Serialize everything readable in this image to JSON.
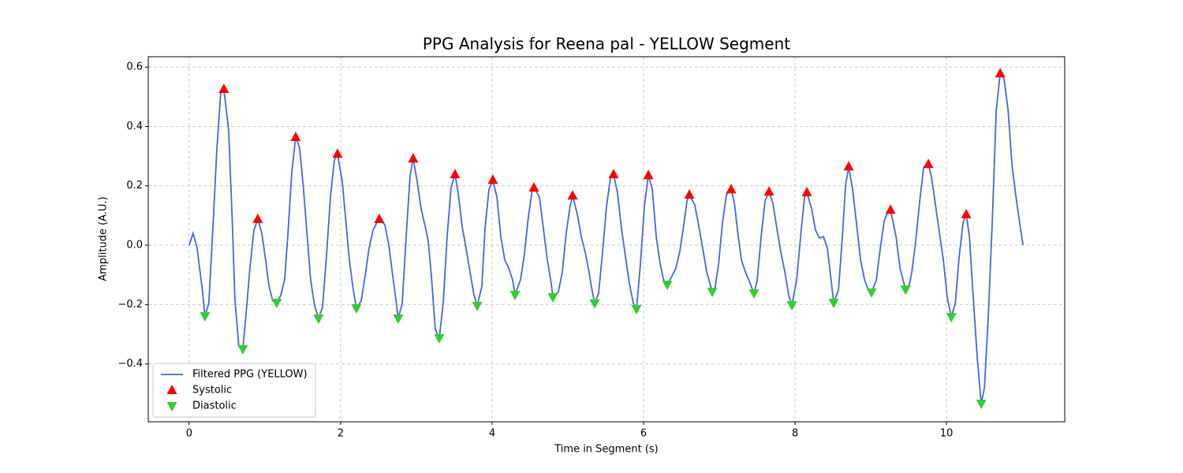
{
  "chart_data": {
    "type": "line",
    "title": "PPG Analysis for Reena pal - YELLOW Segment",
    "xlabel": "Time in Segment (s)",
    "ylabel": "Amplitude (A.U.)",
    "xlim": [
      -0.54,
      11.56
    ],
    "ylim": [
      -0.595,
      0.635
    ],
    "xticks": [
      0,
      2,
      4,
      6,
      8,
      10
    ],
    "yticks": [
      {
        "value": -0.4,
        "label": "−0.4"
      },
      {
        "value": -0.2,
        "label": "−0.2"
      },
      {
        "value": 0,
        "label": "0.0"
      },
      0.2,
      0.4,
      0.6
    ],
    "grid": true,
    "legend": "lower left",
    "series": [
      {
        "name": "Filtered PPG (YELLOW)",
        "color": "#4169e1",
        "marker": "line",
        "x": [
          0,
          0.052,
          0.104,
          0.177,
          0.208,
          0.26,
          0.313,
          0.365,
          0.417,
          0.458,
          0.521,
          0.573,
          0.604,
          0.656,
          0.708,
          0.75,
          0.802,
          0.854,
          0.906,
          0.958,
          1.01,
          1.052,
          1.104,
          1.156,
          1.208,
          1.26,
          1.302,
          1.354,
          1.406,
          1.458,
          1.51,
          1.563,
          1.604,
          1.656,
          1.708,
          1.76,
          1.813,
          1.865,
          1.917,
          1.958,
          2.021,
          2.073,
          2.115,
          2.167,
          2.208,
          2.271,
          2.323,
          2.375,
          2.427,
          2.479,
          2.51,
          2.583,
          2.635,
          2.688,
          2.729,
          2.76,
          2.813,
          2.865,
          2.917,
          2.958,
          3.01,
          3.063,
          3.104,
          3.156,
          3.198,
          3.25,
          3.302,
          3.354,
          3.406,
          3.458,
          3.51,
          3.552,
          3.604,
          3.656,
          3.708,
          3.76,
          3.802,
          3.865,
          3.906,
          3.958,
          4.01,
          4.063,
          4.115,
          4.167,
          4.219,
          4.271,
          4.302,
          4.375,
          4.427,
          4.479,
          4.531,
          4.552,
          4.625,
          4.677,
          4.729,
          4.781,
          4.802,
          4.875,
          4.927,
          4.979,
          5.031,
          5.063,
          5.125,
          5.177,
          5.229,
          5.271,
          5.313,
          5.354,
          5.406,
          5.458,
          5.51,
          5.563,
          5.604,
          5.656,
          5.708,
          5.76,
          5.813,
          5.865,
          5.906,
          5.958,
          6.01,
          6.063,
          6.115,
          6.167,
          6.219,
          6.271,
          6.313,
          6.375,
          6.427,
          6.479,
          6.531,
          6.573,
          6.604,
          6.677,
          6.729,
          6.781,
          6.833,
          6.906,
          6.938,
          6.99,
          7.042,
          7.094,
          7.156,
          7.198,
          7.25,
          7.292,
          7.344,
          7.396,
          7.458,
          7.5,
          7.552,
          7.604,
          7.656,
          7.708,
          7.76,
          7.813,
          7.865,
          7.917,
          7.958,
          8.021,
          8.073,
          8.125,
          8.156,
          8.219,
          8.271,
          8.323,
          8.375,
          8.427,
          8.479,
          8.51,
          8.573,
          8.625,
          8.667,
          8.708,
          8.76,
          8.813,
          8.865,
          8.917,
          8.969,
          9.01,
          9.073,
          9.125,
          9.177,
          9.229,
          9.26,
          9.333,
          9.385,
          9.458,
          9.5,
          9.542,
          9.594,
          9.646,
          9.698,
          9.76,
          9.802,
          9.854,
          9.906,
          9.958,
          10.01,
          10.063,
          10.115,
          10.167,
          10.219,
          10.26,
          10.302,
          10.354,
          10.406,
          10.458,
          10.5,
          10.552,
          10.604,
          10.656,
          10.708,
          10.76,
          10.813,
          10.865,
          10.917,
          10.969,
          11.01
        ],
        "values": [
          0,
          0.04,
          -0.008,
          -0.157,
          -0.239,
          -0.194,
          0.056,
          0.321,
          0.515,
          0.526,
          0.388,
          0.056,
          -0.183,
          -0.342,
          -0.35,
          -0.236,
          -0.077,
          0.05,
          0.088,
          0.042,
          -0.05,
          -0.135,
          -0.188,
          -0.194,
          -0.17,
          -0.117,
          0.029,
          0.242,
          0.364,
          0.329,
          0.188,
          0.016,
          -0.117,
          -0.204,
          -0.247,
          -0.21,
          -0.037,
          0.162,
          0.287,
          0.308,
          0.215,
          0.069,
          -0.05,
          -0.151,
          -0.212,
          -0.188,
          -0.104,
          -0.011,
          0.05,
          0.077,
          0.088,
          0.069,
          0.003,
          -0.104,
          -0.183,
          -0.247,
          -0.196,
          0.029,
          0.236,
          0.292,
          0.215,
          0.122,
          0.077,
          0.016,
          -0.104,
          -0.284,
          -0.313,
          -0.196,
          0.029,
          0.194,
          0.239,
          0.175,
          0.064,
          -0.011,
          -0.09,
          -0.167,
          -0.204,
          -0.138,
          0.056,
          0.188,
          0.22,
          0.162,
          0.029,
          -0.05,
          -0.077,
          -0.117,
          -0.167,
          -0.117,
          -0.029,
          0.096,
          0.188,
          0.194,
          0.162,
          0.056,
          -0.05,
          -0.13,
          -0.175,
          -0.157,
          -0.09,
          0.042,
          0.135,
          0.167,
          0.104,
          0.029,
          -0.024,
          -0.077,
          -0.143,
          -0.196,
          -0.162,
          -0.024,
          0.13,
          0.228,
          0.239,
          0.175,
          0.056,
          -0.037,
          -0.13,
          -0.196,
          -0.215,
          -0.064,
          0.13,
          0.236,
          0.188,
          0.029,
          -0.064,
          -0.125,
          -0.133,
          -0.104,
          -0.077,
          -0.019,
          0.069,
          0.149,
          0.17,
          0.135,
          0.064,
          -0.011,
          -0.09,
          -0.157,
          -0.154,
          -0.064,
          0.077,
          0.17,
          0.188,
          0.143,
          0.029,
          -0.05,
          -0.09,
          -0.122,
          -0.162,
          -0.117,
          0.029,
          0.149,
          0.18,
          0.141,
          0.056,
          -0.024,
          -0.09,
          -0.17,
          -0.202,
          -0.117,
          0.029,
          0.162,
          0.178,
          0.122,
          0.05,
          0.024,
          0.029,
          -0.011,
          -0.125,
          -0.194,
          -0.151,
          0.029,
          0.202,
          0.265,
          0.188,
          0.069,
          -0.05,
          -0.117,
          -0.151,
          -0.159,
          -0.117,
          -0.011,
          0.082,
          0.114,
          0.119,
          0.029,
          -0.077,
          -0.149,
          -0.143,
          -0.09,
          0.016,
          0.149,
          0.263,
          0.273,
          0.228,
          0.135,
          0.042,
          -0.05,
          -0.178,
          -0.242,
          -0.196,
          -0.037,
          0.077,
          0.104,
          0.029,
          -0.183,
          -0.382,
          -0.534,
          -0.481,
          -0.236,
          0.082,
          0.454,
          0.579,
          0.56,
          0.454,
          0.268,
          0.162,
          0.069,
          0
        ]
      },
      {
        "name": "Systolic",
        "color": "#ff0000",
        "marker": "triangle-up",
        "x": [
          0.458,
          0.906,
          1.406,
          1.958,
          2.51,
          2.958,
          3.51,
          4.01,
          4.552,
          5.063,
          5.604,
          6.063,
          6.604,
          7.156,
          7.656,
          8.156,
          8.708,
          9.26,
          9.76,
          10.26,
          10.708
        ],
        "values": [
          0.526,
          0.088,
          0.364,
          0.308,
          0.088,
          0.292,
          0.239,
          0.22,
          0.194,
          0.167,
          0.239,
          0.236,
          0.17,
          0.188,
          0.18,
          0.178,
          0.265,
          0.119,
          0.273,
          0.104,
          0.579
        ]
      },
      {
        "name": "Diastolic",
        "color": "#32cd32",
        "marker": "triangle-down",
        "x": [
          0.208,
          0.708,
          1.156,
          1.708,
          2.208,
          2.76,
          3.302,
          3.802,
          4.302,
          4.802,
          5.354,
          5.906,
          6.313,
          6.906,
          7.458,
          7.958,
          8.51,
          9.01,
          9.458,
          10.063,
          10.458
        ],
        "values": [
          -0.239,
          -0.35,
          -0.194,
          -0.247,
          -0.212,
          -0.247,
          -0.313,
          -0.204,
          -0.167,
          -0.175,
          -0.196,
          -0.215,
          -0.133,
          -0.157,
          -0.162,
          -0.202,
          -0.194,
          -0.159,
          -0.149,
          -0.242,
          -0.534
        ]
      }
    ]
  }
}
